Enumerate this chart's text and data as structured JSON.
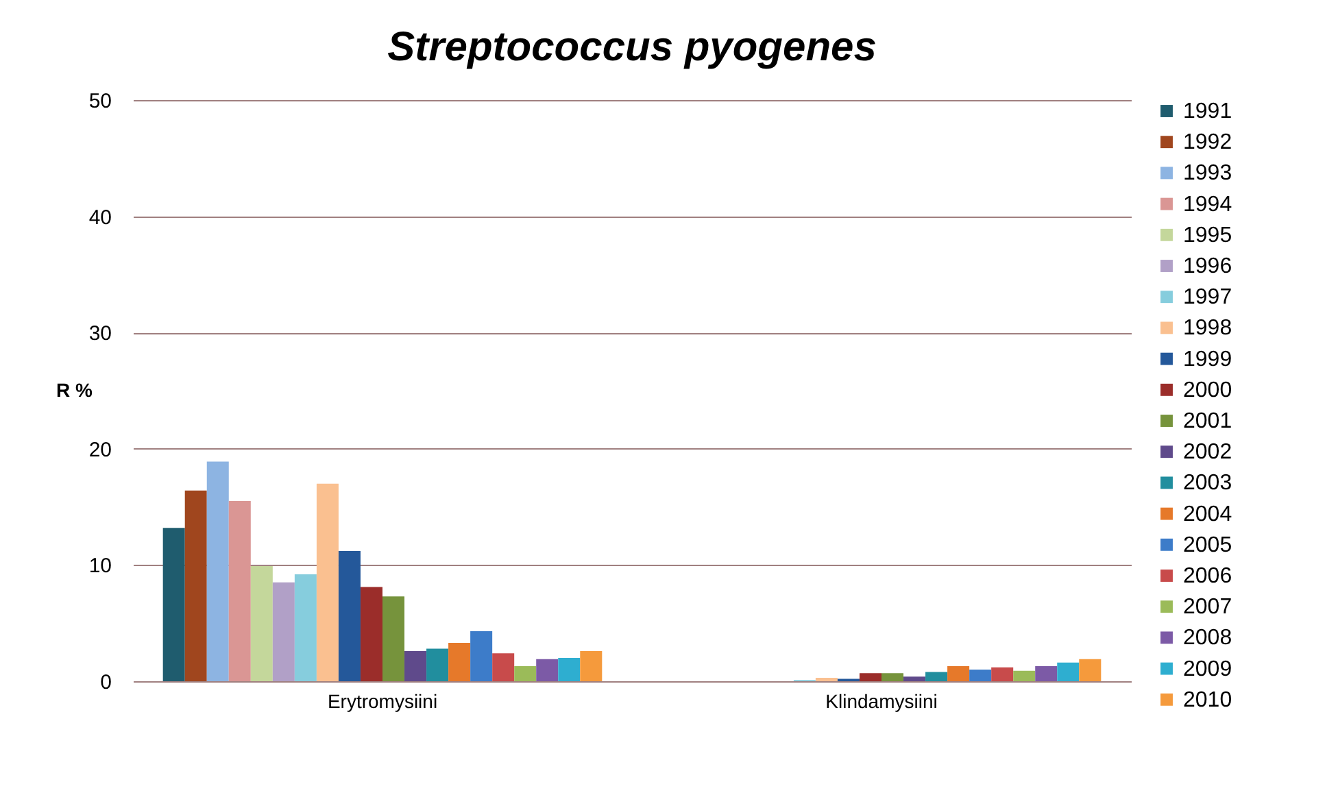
{
  "chart_data": {
    "type": "bar",
    "title": "Streptococcus  pyogenes",
    "ylabel": "R %",
    "categories": [
      "Erytromysiini",
      "Klindamysiini"
    ],
    "series": [
      {
        "name": "1991",
        "color": "#1f5c6e",
        "values": [
          13.2,
          0
        ]
      },
      {
        "name": "1992",
        "color": "#a0461e",
        "values": [
          16.4,
          0
        ]
      },
      {
        "name": "1993",
        "color": "#8db4e2",
        "values": [
          18.9,
          0
        ]
      },
      {
        "name": "1994",
        "color": "#da9694",
        "values": [
          15.5,
          0
        ]
      },
      {
        "name": "1995",
        "color": "#c4d79b",
        "values": [
          9.9,
          0
        ]
      },
      {
        "name": "1996",
        "color": "#b1a0c7",
        "values": [
          8.5,
          0
        ]
      },
      {
        "name": "1997",
        "color": "#86cddd",
        "values": [
          9.2,
          0.1
        ]
      },
      {
        "name": "1998",
        "color": "#fac090",
        "values": [
          17.0,
          0.3
        ]
      },
      {
        "name": "1999",
        "color": "#24589a",
        "values": [
          11.2,
          0.2
        ]
      },
      {
        "name": "2000",
        "color": "#9b2d2a",
        "values": [
          8.1,
          0.7
        ]
      },
      {
        "name": "2001",
        "color": "#76933c",
        "values": [
          7.3,
          0.7
        ]
      },
      {
        "name": "2002",
        "color": "#5f4a8b",
        "values": [
          2.6,
          0.4
        ]
      },
      {
        "name": "2003",
        "color": "#218e9e",
        "values": [
          2.8,
          0.8
        ]
      },
      {
        "name": "2004",
        "color": "#e6792a",
        "values": [
          3.3,
          1.3
        ]
      },
      {
        "name": "2005",
        "color": "#3d7cc9",
        "values": [
          4.3,
          1.0
        ]
      },
      {
        "name": "2006",
        "color": "#c84b4b",
        "values": [
          2.4,
          1.2
        ]
      },
      {
        "name": "2007",
        "color": "#9bbb59",
        "values": [
          1.3,
          0.9
        ]
      },
      {
        "name": "2008",
        "color": "#7c5aa6",
        "values": [
          1.9,
          1.3
        ]
      },
      {
        "name": "2009",
        "color": "#2eaed0",
        "values": [
          2.0,
          1.6
        ]
      },
      {
        "name": "2010",
        "color": "#f59a3c",
        "values": [
          2.6,
          1.9
        ]
      }
    ],
    "ylim": [
      0,
      50
    ],
    "yticks": [
      0,
      10,
      20,
      30,
      40,
      50
    ],
    "grid": "y",
    "legend": "right"
  }
}
